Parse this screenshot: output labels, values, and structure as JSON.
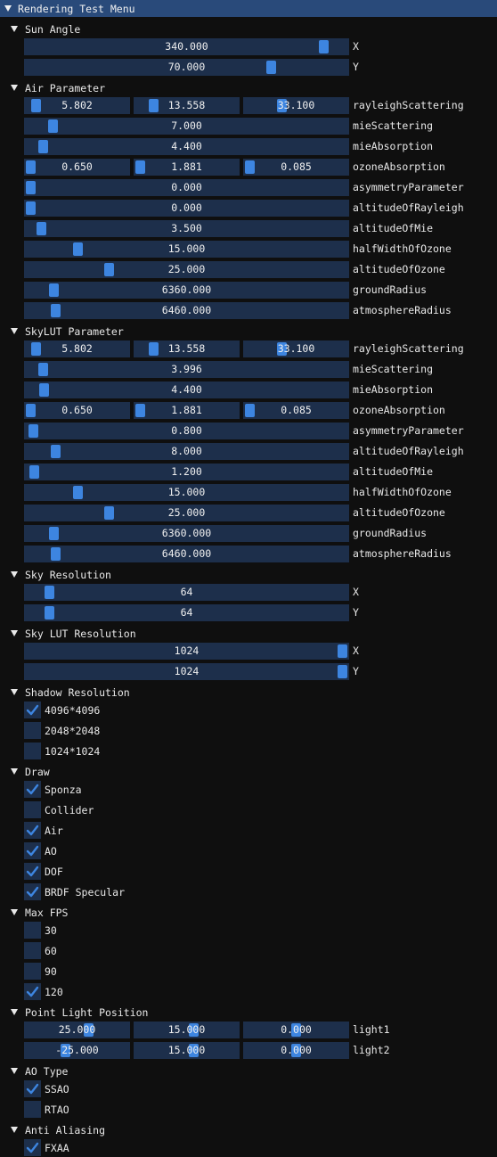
{
  "window": {
    "title": "Rendering Test Menu"
  },
  "colors": {
    "titlebar": "#294a7a",
    "frame": "#1d2f4b",
    "grab": "#3d85e0",
    "check": "#3d85e0",
    "background": "#0f0f0f"
  },
  "sections": [
    {
      "type": "header",
      "label": "Sun Angle"
    },
    {
      "type": "slider",
      "label": "X",
      "fields": [
        {
          "value": "340.000",
          "fill": 0.94
        }
      ]
    },
    {
      "type": "slider",
      "label": "Y",
      "fields": [
        {
          "value": "70.000",
          "fill": 0.77
        }
      ]
    },
    {
      "type": "header",
      "label": "Air Parameter"
    },
    {
      "type": "slider",
      "label": "rayleighScattering",
      "fields": [
        {
          "value": "5.802",
          "fill": 0.06
        },
        {
          "value": "13.558",
          "fill": 0.14
        },
        {
          "value": "33.100",
          "fill": 0.35
        }
      ]
    },
    {
      "type": "slider",
      "label": "mieScattering",
      "fields": [
        {
          "value": "7.000",
          "fill": 0.07
        }
      ]
    },
    {
      "type": "slider",
      "label": "mieAbsorption",
      "fields": [
        {
          "value": "4.400",
          "fill": 0.04
        }
      ]
    },
    {
      "type": "slider",
      "label": "ozoneAbsorption",
      "fields": [
        {
          "value": "0.650",
          "fill": 0.0
        },
        {
          "value": "1.881",
          "fill": 0.0
        },
        {
          "value": "0.085",
          "fill": 0.0
        }
      ]
    },
    {
      "type": "slider",
      "label": "asymmetryParameter",
      "fields": [
        {
          "value": "0.000",
          "fill": 0.0
        }
      ]
    },
    {
      "type": "slider",
      "label": "altitudeOfRayleigh",
      "fields": [
        {
          "value": "0.000",
          "fill": 0.0
        }
      ]
    },
    {
      "type": "slider",
      "label": "altitudeOfMie",
      "fields": [
        {
          "value": "3.500",
          "fill": 0.035
        }
      ]
    },
    {
      "type": "slider",
      "label": "halfWidthOfOzone",
      "fields": [
        {
          "value": "15.000",
          "fill": 0.15
        }
      ]
    },
    {
      "type": "slider",
      "label": "altitudeOfOzone",
      "fields": [
        {
          "value": "25.000",
          "fill": 0.25
        }
      ]
    },
    {
      "type": "slider",
      "label": "groundRadius",
      "fields": [
        {
          "value": "6360.000",
          "fill": 0.075
        }
      ]
    },
    {
      "type": "slider",
      "label": "atmosphereRadius",
      "fields": [
        {
          "value": "6460.000",
          "fill": 0.08
        }
      ]
    },
    {
      "type": "header",
      "label": "SkyLUT Parameter"
    },
    {
      "type": "slider",
      "label": "rayleighScattering",
      "fields": [
        {
          "value": "5.802",
          "fill": 0.06
        },
        {
          "value": "13.558",
          "fill": 0.14
        },
        {
          "value": "33.100",
          "fill": 0.35
        }
      ]
    },
    {
      "type": "slider",
      "label": "mieScattering",
      "fields": [
        {
          "value": "3.996",
          "fill": 0.04
        }
      ]
    },
    {
      "type": "slider",
      "label": "mieAbsorption",
      "fields": [
        {
          "value": "4.400",
          "fill": 0.044
        }
      ]
    },
    {
      "type": "slider",
      "label": "ozoneAbsorption",
      "fields": [
        {
          "value": "0.650",
          "fill": 0.0
        },
        {
          "value": "1.881",
          "fill": 0.0
        },
        {
          "value": "0.085",
          "fill": 0.0
        }
      ]
    },
    {
      "type": "slider",
      "label": "asymmetryParameter",
      "fields": [
        {
          "value": "0.800",
          "fill": 0.008
        }
      ]
    },
    {
      "type": "slider",
      "label": "altitudeOfRayleigh",
      "fields": [
        {
          "value": "8.000",
          "fill": 0.08
        }
      ]
    },
    {
      "type": "slider",
      "label": "altitudeOfMie",
      "fields": [
        {
          "value": "1.200",
          "fill": 0.012
        }
      ]
    },
    {
      "type": "slider",
      "label": "halfWidthOfOzone",
      "fields": [
        {
          "value": "15.000",
          "fill": 0.15
        }
      ]
    },
    {
      "type": "slider",
      "label": "altitudeOfOzone",
      "fields": [
        {
          "value": "25.000",
          "fill": 0.25
        }
      ]
    },
    {
      "type": "slider",
      "label": "groundRadius",
      "fields": [
        {
          "value": "6360.000",
          "fill": 0.075
        }
      ]
    },
    {
      "type": "slider",
      "label": "atmosphereRadius",
      "fields": [
        {
          "value": "6460.000",
          "fill": 0.08
        }
      ]
    },
    {
      "type": "header",
      "label": "Sky Resolution"
    },
    {
      "type": "slider",
      "label": "X",
      "fields": [
        {
          "value": "64",
          "fill": 0.06
        }
      ]
    },
    {
      "type": "slider",
      "label": "Y",
      "fields": [
        {
          "value": "64",
          "fill": 0.06
        }
      ]
    },
    {
      "type": "header",
      "label": "Sky LUT Resolution"
    },
    {
      "type": "slider",
      "label": "X",
      "fields": [
        {
          "value": "1024",
          "fill": 1.0
        }
      ]
    },
    {
      "type": "slider",
      "label": "Y",
      "fields": [
        {
          "value": "1024",
          "fill": 1.0
        }
      ]
    },
    {
      "type": "header",
      "label": "Shadow Resolution"
    },
    {
      "type": "checkbox",
      "label": "4096*4096",
      "checked": true
    },
    {
      "type": "checkbox",
      "label": "2048*2048",
      "checked": false
    },
    {
      "type": "checkbox",
      "label": "1024*1024",
      "checked": false
    },
    {
      "type": "header",
      "label": "Draw"
    },
    {
      "type": "checkbox",
      "label": "Sponza",
      "checked": true
    },
    {
      "type": "checkbox",
      "label": "Collider",
      "checked": false
    },
    {
      "type": "checkbox",
      "label": "Air",
      "checked": true
    },
    {
      "type": "checkbox",
      "label": "AO",
      "checked": true
    },
    {
      "type": "checkbox",
      "label": "DOF",
      "checked": true
    },
    {
      "type": "checkbox",
      "label": "BRDF Specular",
      "checked": true
    },
    {
      "type": "header",
      "label": "Max FPS"
    },
    {
      "type": "checkbox",
      "label": "30",
      "checked": false
    },
    {
      "type": "checkbox",
      "label": "60",
      "checked": false
    },
    {
      "type": "checkbox",
      "label": "90",
      "checked": false
    },
    {
      "type": "checkbox",
      "label": "120",
      "checked": true
    },
    {
      "type": "header",
      "label": "Point Light Position"
    },
    {
      "type": "slider",
      "label": "light1",
      "fields": [
        {
          "value": "25.000",
          "fill": 0.625
        },
        {
          "value": "15.000",
          "fill": 0.575
        },
        {
          "value": "0.000",
          "fill": 0.5
        }
      ]
    },
    {
      "type": "slider",
      "label": "light2",
      "fields": [
        {
          "value": "-25.000",
          "fill": 0.375
        },
        {
          "value": "15.000",
          "fill": 0.575
        },
        {
          "value": "0.000",
          "fill": 0.5
        }
      ]
    },
    {
      "type": "header",
      "label": "AO Type"
    },
    {
      "type": "checkbox",
      "label": "SSAO",
      "checked": true
    },
    {
      "type": "checkbox",
      "label": "RTAO",
      "checked": false
    },
    {
      "type": "header",
      "label": "Anti Aliasing"
    },
    {
      "type": "checkbox",
      "label": "FXAA",
      "checked": true
    }
  ]
}
